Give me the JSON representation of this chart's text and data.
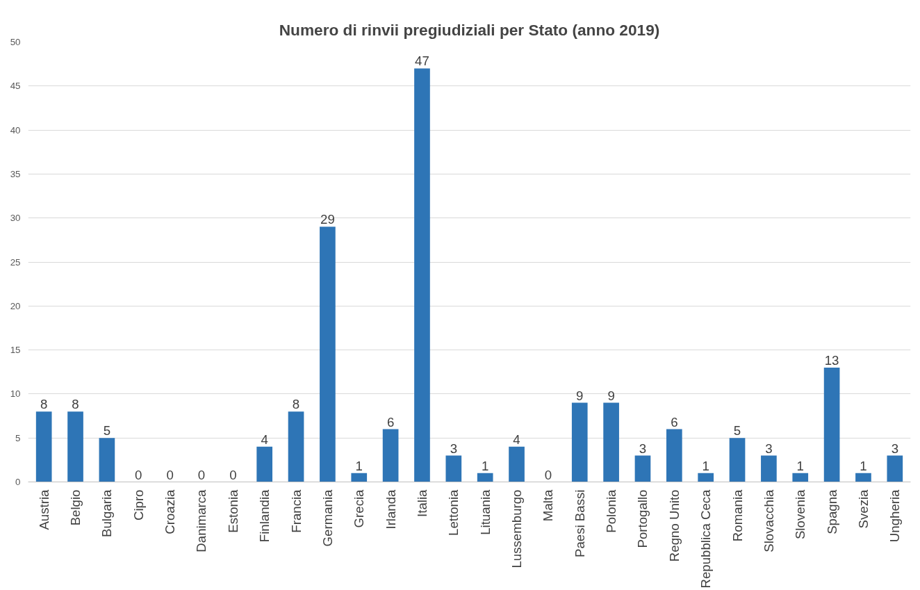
{
  "chart_data": {
    "type": "bar",
    "title": "Numero di rinvii pregiudiziali per Stato (anno 2019)",
    "categories": [
      "Austria",
      "Belgio",
      "Bulgaria",
      "Cipro",
      "Croazia",
      "Danimarca",
      "Estonia",
      "Finlandia",
      "Francia",
      "Germania",
      "Grecia",
      "Irlanda",
      "Italia",
      "Lettonia",
      "Lituania",
      "Lussemburgo",
      "Malta",
      "Paesi Bassi",
      "Polonia",
      "Portogallo",
      "Regno Unito",
      "Repubblica Ceca",
      "Romania",
      "Slovacchia",
      "Slovenia",
      "Spagna",
      "Svezia",
      "Ungheria"
    ],
    "values": [
      8,
      8,
      5,
      0,
      0,
      0,
      0,
      4,
      8,
      29,
      1,
      6,
      47,
      3,
      1,
      4,
      0,
      9,
      9,
      3,
      6,
      1,
      5,
      3,
      1,
      13,
      1,
      3
    ],
    "color": "#2e75b6",
    "ylim": [
      0,
      50
    ],
    "yticks": [
      0,
      5,
      10,
      15,
      20,
      25,
      30,
      35,
      40,
      45,
      50
    ],
    "grid": "y",
    "data_labels": true
  }
}
